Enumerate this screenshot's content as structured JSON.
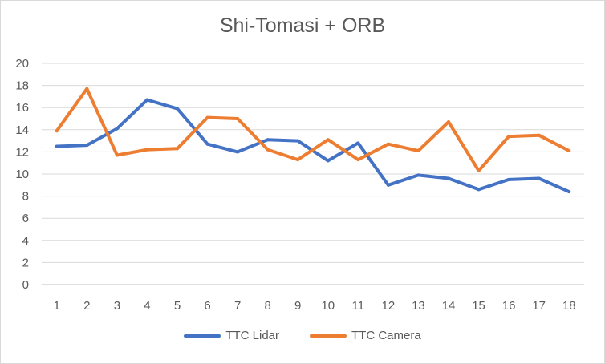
{
  "chart_data": {
    "type": "line",
    "title": "Shi-Tomasi + ORB",
    "xlabel": "",
    "ylabel": "",
    "categories": [
      "1",
      "2",
      "3",
      "4",
      "5",
      "6",
      "7",
      "8",
      "9",
      "10",
      "11",
      "12",
      "13",
      "14",
      "15",
      "16",
      "17",
      "18"
    ],
    "ylim": [
      0,
      20
    ],
    "yticks": [
      "0",
      "2",
      "4",
      "6",
      "8",
      "10",
      "12",
      "14",
      "16",
      "18",
      "20"
    ],
    "grid": true,
    "legend_position": "bottom",
    "series": [
      {
        "name": "TTC Lidar",
        "color": "#4472c4",
        "values": [
          12.5,
          12.6,
          14.1,
          16.7,
          15.9,
          12.7,
          12.0,
          13.1,
          13.0,
          11.2,
          12.8,
          9.0,
          9.9,
          9.6,
          8.6,
          9.5,
          9.6,
          8.4
        ]
      },
      {
        "name": "TTC Camera",
        "color": "#ed7d31",
        "values": [
          13.9,
          17.7,
          11.7,
          12.2,
          12.3,
          15.1,
          15.0,
          12.2,
          11.3,
          13.1,
          11.3,
          12.7,
          12.1,
          14.7,
          10.3,
          13.4,
          13.5,
          12.1
        ]
      }
    ]
  }
}
